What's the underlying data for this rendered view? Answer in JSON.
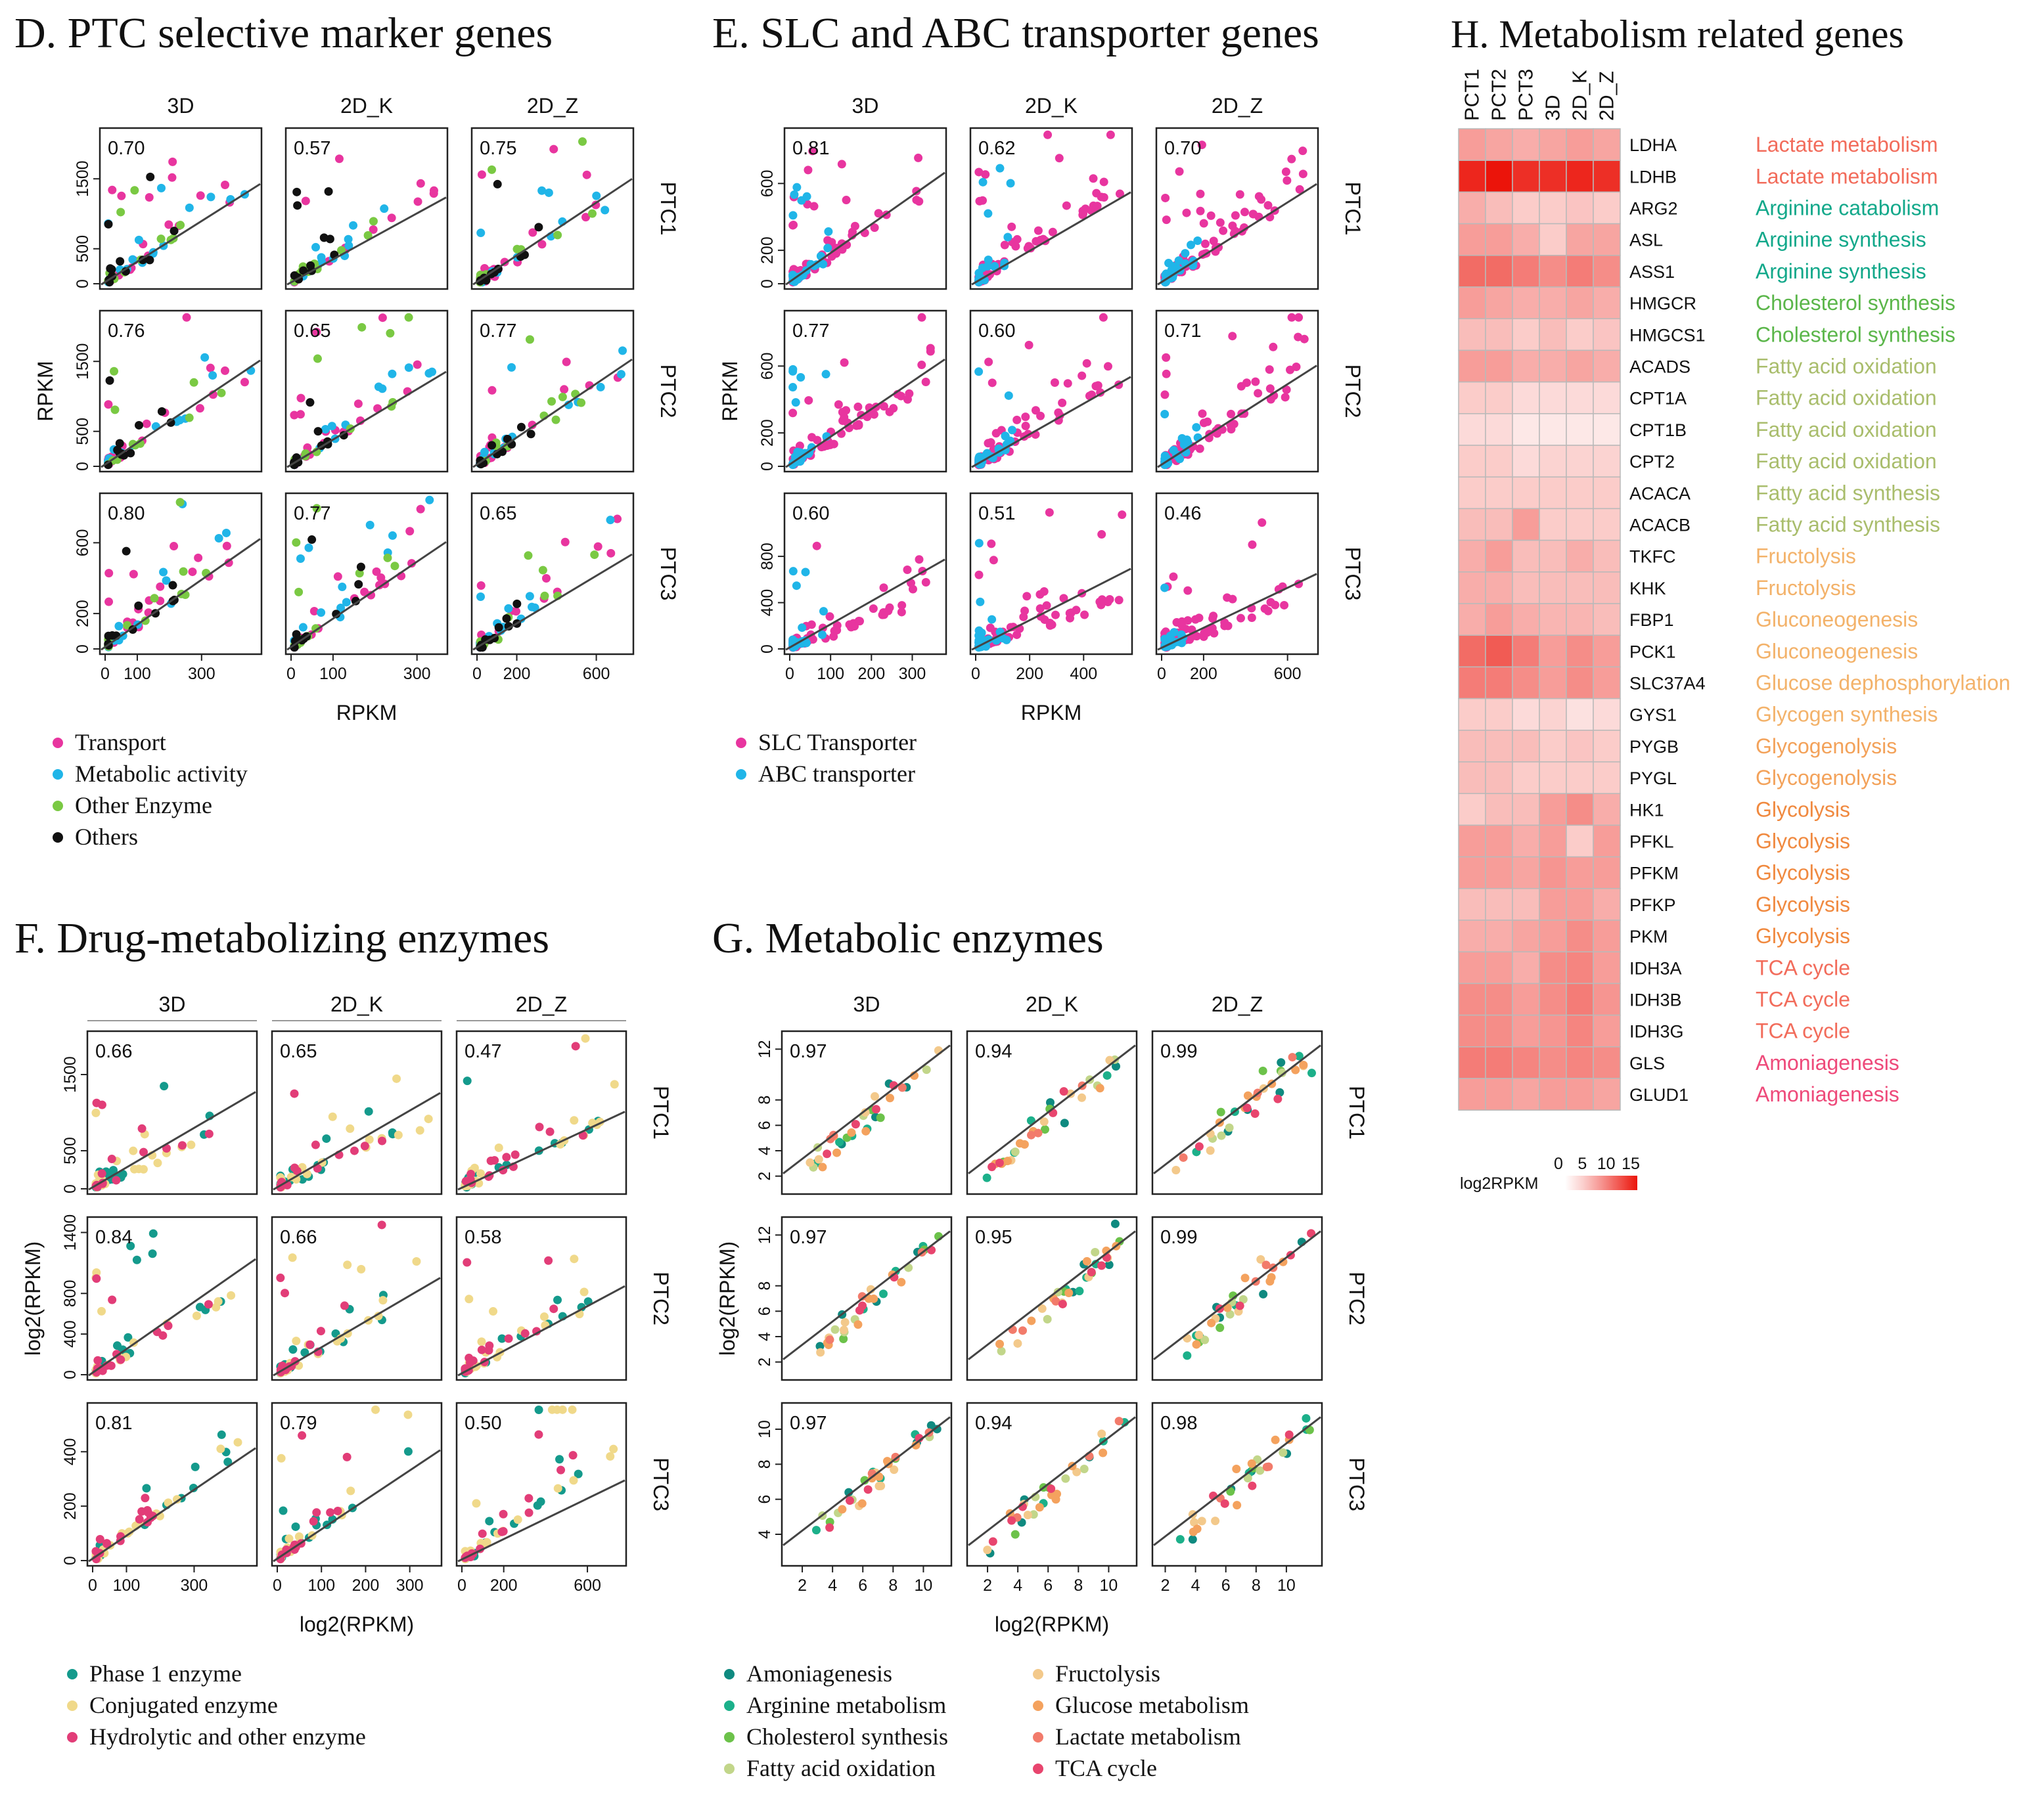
{
  "panels": [
    {
      "id": "D",
      "title": "D. PTC selective marker genes",
      "type": "scatter",
      "col_labels": [
        "3D",
        "2D_K",
        "2D_Z"
      ],
      "row_labels": [
        "PTC1",
        "PTC2",
        "PTC3"
      ],
      "xlabel": "RPKM",
      "ylabel": "RPKM",
      "row_yticks": [
        [
          0,
          500,
          1500
        ],
        [
          0,
          500,
          1500
        ],
        [
          0,
          200,
          600
        ]
      ],
      "row_ylim": [
        [
          0,
          2150
        ],
        [
          0,
          2150
        ],
        [
          0,
          850
        ]
      ],
      "col_xticks": [
        [
          0,
          100,
          300
        ],
        [
          0,
          100,
          300
        ],
        [
          0,
          200,
          600
        ]
      ],
      "col_xlim": [
        [
          0,
          470
        ],
        [
          0,
          360
        ],
        [
          0,
          760
        ]
      ],
      "corr": [
        [
          "0.70",
          "0.57",
          "0.75"
        ],
        [
          "0.76",
          "0.65",
          "0.77"
        ],
        [
          "0.80",
          "0.77",
          "0.65"
        ]
      ],
      "legend": [
        {
          "label": "Transport",
          "color": "#e8359f"
        },
        {
          "label": "Metabolic activity",
          "color": "#20b5e8"
        },
        {
          "label": "Other Enzyme",
          "color": "#7ac943"
        },
        {
          "label": "Others",
          "color": "#111111"
        }
      ],
      "groups": [
        {
          "n": 22,
          "spread": 1
        },
        {
          "n": 16,
          "spread": 1
        },
        {
          "n": 12,
          "spread": 0.8
        },
        {
          "n": 12,
          "spread": 0.5
        }
      ],
      "row_slope": [
        0.62,
        0.64,
        0.72
      ],
      "seed": 11
    },
    {
      "id": "E",
      "title": "E. SLC and ABC transporter genes",
      "type": "scatter",
      "col_labels": [
        "3D",
        "2D_K",
        "2D_Z"
      ],
      "row_labels": [
        "PTC1",
        "PTC2",
        "PTC3"
      ],
      "xlabel": "RPKM",
      "ylabel": "RPKM",
      "row_yticks": [
        [
          0,
          200,
          600
        ],
        [
          0,
          200,
          600
        ],
        [
          0,
          400,
          800
        ]
      ],
      "row_ylim": [
        [
          0,
          900
        ],
        [
          0,
          900
        ],
        [
          0,
          1300
        ]
      ],
      "col_xticks": [
        [
          0,
          100,
          200,
          300
        ],
        [
          0,
          200,
          400
        ],
        [
          0,
          200,
          600
        ]
      ],
      "col_xlim": [
        [
          0,
          370
        ],
        [
          0,
          560
        ],
        [
          0,
          720
        ]
      ],
      "corr": [
        [
          "0.81",
          "0.62",
          "0.70"
        ],
        [
          "0.77",
          "0.60",
          "0.71"
        ],
        [
          "0.60",
          "0.51",
          "0.46"
        ]
      ],
      "legend": [
        {
          "label": "SLC Transporter",
          "color": "#e8359f"
        },
        {
          "label": "ABC transporter",
          "color": "#20b5e8"
        }
      ],
      "groups": [
        {
          "n": 70,
          "spread": 1
        },
        {
          "n": 26,
          "spread": 0.25
        }
      ],
      "row_slope": [
        0.66,
        0.6,
        0.36
      ],
      "seed": 23
    },
    {
      "id": "F",
      "title": "F. Drug-metabolizing enzymes",
      "type": "scatter",
      "col_labels": [
        "3D",
        "2D_K",
        "2D_Z"
      ],
      "row_labels": [
        "PTC1",
        "PTC2",
        "PTC3"
      ],
      "xlabel": "log2(RPKM)",
      "ylabel": "log2(RPKM)",
      "row_yticks": [
        [
          0,
          500,
          1500
        ],
        [
          0,
          400,
          800,
          1400
        ],
        [
          0,
          200,
          400
        ]
      ],
      "row_ylim": [
        [
          0,
          2000
        ],
        [
          0,
          1500
        ],
        [
          0,
          560
        ]
      ],
      "col_xticks": [
        [
          0,
          100,
          300
        ],
        [
          0,
          100,
          200,
          300
        ],
        [
          0,
          200,
          600
        ]
      ],
      "col_xlim": [
        [
          0,
          470
        ],
        [
          0,
          360
        ],
        [
          0,
          760
        ]
      ],
      "corr": [
        [
          "0.66",
          "0.65",
          "0.47"
        ],
        [
          "0.84",
          "0.66",
          "0.58"
        ],
        [
          "0.81",
          "0.79",
          "0.50"
        ]
      ],
      "legend": [
        {
          "label": "Phase 1 enzyme",
          "color": "#149a8c"
        },
        {
          "label": "Conjugated enzyme",
          "color": "#f0d98a"
        },
        {
          "label": "Hydrolytic and other enzyme",
          "color": "#e23d78"
        }
      ],
      "groups": [
        {
          "n": 16,
          "spread": 0.9
        },
        {
          "n": 22,
          "spread": 1
        },
        {
          "n": 16,
          "spread": 0.8
        }
      ],
      "row_slope": [
        0.48,
        0.58,
        0.76
      ],
      "seed": 37
    },
    {
      "id": "G",
      "title": "G. Metabolic enzymes",
      "type": "scatter",
      "col_labels": [
        "3D",
        "2D_K",
        "2D_Z"
      ],
      "row_labels": [
        "PTC1",
        "PTC2",
        "PTC3"
      ],
      "xlabel": "log2(RPKM)",
      "ylabel": "log2(RPKM)",
      "row_yticks": [
        [
          2,
          4,
          6,
          8,
          12
        ],
        [
          2,
          4,
          6,
          8,
          12
        ],
        [
          4,
          6,
          8,
          10
        ]
      ],
      "row_ylim": [
        [
          1,
          13
        ],
        [
          1,
          13
        ],
        [
          2.5,
          11.2
        ]
      ],
      "col_xticks": [
        [
          2,
          4,
          6,
          8,
          10
        ],
        [
          2,
          4,
          6,
          8,
          10
        ],
        [
          2,
          4,
          6,
          8,
          10
        ]
      ],
      "col_xlim": [
        [
          1,
          11.5
        ],
        [
          1,
          11.5
        ],
        [
          1.5,
          12
        ]
      ],
      "corr": [
        [
          "0.97",
          "0.94",
          "0.99"
        ],
        [
          "0.97",
          "0.95",
          "0.99"
        ],
        [
          "0.97",
          "0.94",
          "0.98"
        ]
      ],
      "legend": [
        {
          "label": "Amoniagenesis",
          "color": "#0f8a80"
        },
        {
          "label": "Arginine metabolism",
          "color": "#1cb08a"
        },
        {
          "label": "Cholesterol synthesis",
          "color": "#6cc24a"
        },
        {
          "label": "Fatty acid oxidation",
          "color": "#c2d68a"
        },
        {
          "label": "Fructolysis",
          "color": "#f3c98b"
        },
        {
          "label": "Glucose metabolism",
          "color": "#f4a25e"
        },
        {
          "label": "Lactate metabolism",
          "color": "#f27b6b"
        },
        {
          "label": "TCA cycle",
          "color": "#e8456e"
        }
      ],
      "groups": [
        {
          "n": 4,
          "spread": 1
        },
        {
          "n": 4,
          "spread": 1
        },
        {
          "n": 3,
          "spread": 1
        },
        {
          "n": 4,
          "spread": 1
        },
        {
          "n": 5,
          "spread": 1
        },
        {
          "n": 7,
          "spread": 1
        },
        {
          "n": 3,
          "spread": 1
        },
        {
          "n": 4,
          "spread": 1
        }
      ],
      "row_slope": [
        0.9,
        0.9,
        0.85
      ],
      "seed": 51
    }
  ],
  "heatmap": {
    "title": "H. Metabolism related genes",
    "columns": [
      "PCT1",
      "PCT2",
      "PCT3",
      "3D",
      "2D_K",
      "2D_Z"
    ],
    "colorbar_label": "log2RPKM",
    "colorbar_ticks": [
      "0",
      "5",
      "10",
      "15"
    ],
    "colorbar_range": [
      0,
      15
    ],
    "rows": [
      {
        "gene": "LDHA",
        "pathway": "Lactate metabolism",
        "color": "#f26c5b",
        "values": [
          7,
          6.5,
          6,
          6.5,
          7,
          6.5
        ]
      },
      {
        "gene": "LDHB",
        "pathway": "Lactate metabolism",
        "color": "#f26c5b",
        "values": [
          14,
          15,
          13.5,
          13.5,
          14,
          13.5
        ]
      },
      {
        "gene": "ARG2",
        "pathway": "Arginine catabolism",
        "color": "#12a88a",
        "values": [
          6,
          5,
          4,
          4,
          4.5,
          4
        ]
      },
      {
        "gene": "ASL",
        "pathway": "Arginine synthesis",
        "color": "#12a88a",
        "values": [
          7,
          7,
          6,
          4,
          6.5,
          6.5
        ]
      },
      {
        "gene": "ASS1",
        "pathway": "Arginine synthesis",
        "color": "#12a88a",
        "values": [
          10,
          10,
          9,
          8,
          9,
          8
        ]
      },
      {
        "gene": "HMGCR",
        "pathway": "Cholesterol synthesis",
        "color": "#5bb64a",
        "values": [
          7,
          6.5,
          6,
          6,
          6.5,
          6
        ]
      },
      {
        "gene": "HMGCS1",
        "pathway": "Cholesterol synthesis",
        "color": "#5bb64a",
        "values": [
          5,
          5,
          4,
          5,
          4,
          4.5
        ]
      },
      {
        "gene": "ACADS",
        "pathway": "Fatty acid oxidation",
        "color": "#a9bd6c",
        "values": [
          7,
          7,
          6,
          6,
          6.5,
          6
        ]
      },
      {
        "gene": "CPT1A",
        "pathway": "Fatty acid oxidation",
        "color": "#a9bd6c",
        "values": [
          4,
          4,
          3,
          3,
          3,
          3
        ]
      },
      {
        "gene": "CPT1B",
        "pathway": "Fatty acid oxidation",
        "color": "#a9bd6c",
        "values": [
          3,
          3,
          2,
          2,
          2,
          2
        ]
      },
      {
        "gene": "CPT2",
        "pathway": "Fatty acid oxidation",
        "color": "#a9bd6c",
        "values": [
          4,
          4,
          3,
          3.5,
          3.5,
          3.5
        ]
      },
      {
        "gene": "ACACA",
        "pathway": "Fatty acid synthesis",
        "color": "#a9bd6c",
        "values": [
          4,
          4,
          4,
          4,
          4,
          4
        ]
      },
      {
        "gene": "ACACB",
        "pathway": "Fatty acid synthesis",
        "color": "#a9bd6c",
        "values": [
          5,
          5,
          7,
          4,
          4,
          4
        ]
      },
      {
        "gene": "TKFC",
        "pathway": "Fructolysis",
        "color": "#f3b26a",
        "values": [
          6,
          7,
          5,
          5,
          6,
          5
        ]
      },
      {
        "gene": "KHK",
        "pathway": "Fructolysis",
        "color": "#f3b26a",
        "values": [
          6,
          6,
          5,
          5,
          5,
          5
        ]
      },
      {
        "gene": "FBP1",
        "pathway": "Gluconeogenesis",
        "color": "#f3b26a",
        "values": [
          6,
          7,
          6,
          5.5,
          5.5,
          5
        ]
      },
      {
        "gene": "PCK1",
        "pathway": "Gluconeogenesis",
        "color": "#f3b26a",
        "values": [
          10,
          11,
          9,
          7,
          8,
          7
        ]
      },
      {
        "gene": "SLC37A4",
        "pathway": "Glucose dephosphorylation",
        "color": "#f3b26a",
        "values": [
          9,
          9,
          8,
          7,
          8,
          7
        ]
      },
      {
        "gene": "GYS1",
        "pathway": "Glycogen synthesis",
        "color": "#f3b26a",
        "values": [
          4,
          4,
          3,
          3.5,
          2.5,
          3
        ]
      },
      {
        "gene": "PYGB",
        "pathway": "Glycogenolysis",
        "color": "#f3a25a",
        "values": [
          5,
          5,
          5,
          4,
          4.5,
          4
        ]
      },
      {
        "gene": "PYGL",
        "pathway": "Glycogenolysis",
        "color": "#f3a25a",
        "values": [
          5,
          5,
          4,
          4,
          4,
          4
        ]
      },
      {
        "gene": "HK1",
        "pathway": "Glycolysis",
        "color": "#f0893f",
        "values": [
          4,
          5,
          5,
          7,
          8,
          6
        ]
      },
      {
        "gene": "PFKL",
        "pathway": "Glycolysis",
        "color": "#f0893f",
        "values": [
          7,
          7,
          6,
          7,
          4,
          7
        ]
      },
      {
        "gene": "PFKM",
        "pathway": "Glycolysis",
        "color": "#f0893f",
        "values": [
          7,
          7,
          6.5,
          7.5,
          7,
          7
        ]
      },
      {
        "gene": "PFKP",
        "pathway": "Glycolysis",
        "color": "#f0893f",
        "values": [
          5,
          5,
          5,
          7,
          7,
          6
        ]
      },
      {
        "gene": "PKM",
        "pathway": "Glycolysis",
        "color": "#f0893f",
        "values": [
          6,
          6,
          6.5,
          7,
          8,
          7
        ]
      },
      {
        "gene": "IDH3A",
        "pathway": "TCA cycle",
        "color": "#f26c5b",
        "values": [
          7,
          7,
          6,
          8,
          8.5,
          7
        ]
      },
      {
        "gene": "IDH3B",
        "pathway": "TCA cycle",
        "color": "#f26c5b",
        "values": [
          8,
          8,
          7,
          8,
          9,
          7.5
        ]
      },
      {
        "gene": "IDH3G",
        "pathway": "TCA cycle",
        "color": "#f26c5b",
        "values": [
          8,
          8,
          7,
          7.5,
          8.5,
          7
        ]
      },
      {
        "gene": "GLS",
        "pathway": "Amoniagenesis",
        "color": "#ee4a7a",
        "values": [
          9,
          9,
          8.5,
          8,
          8.5,
          8
        ]
      },
      {
        "gene": "GLUD1",
        "pathway": "Amoniagenesis",
        "color": "#ee4a7a",
        "values": [
          7,
          7,
          6.5,
          7,
          7,
          6.5
        ]
      }
    ]
  }
}
